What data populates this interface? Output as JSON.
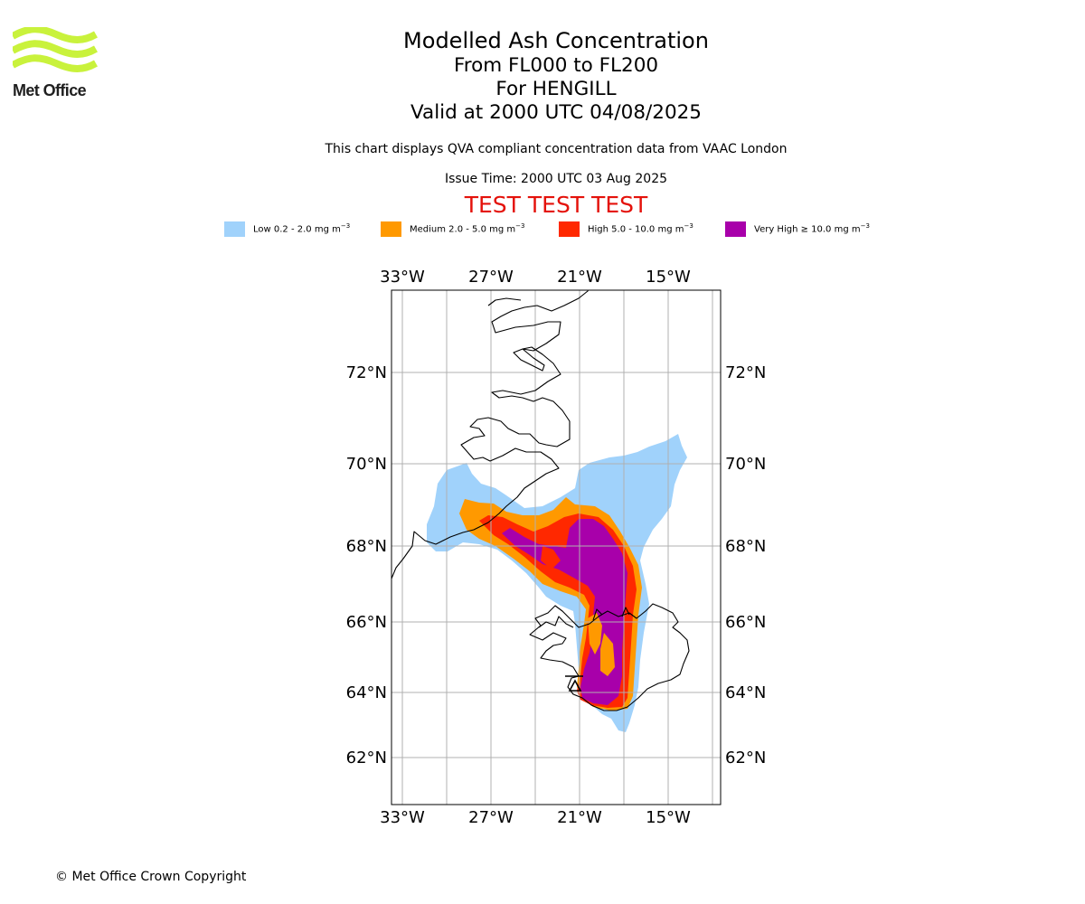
{
  "logo": {
    "name": "Met Office",
    "brand_color": "#c9f23c"
  },
  "title": {
    "line1": "Modelled Ash Concentration",
    "line2": "From FL000 to FL200",
    "line3": "For HENGILL",
    "line4": "Valid at 2000 UTC 04/08/2025"
  },
  "description": "This chart displays QVA compliant concentration data from VAAC London",
  "issue_time": "Issue Time: 2000 UTC 03 Aug 2025",
  "test_banner": "TEST TEST TEST",
  "legend": [
    {
      "label": "Low 0.2 - 2.0 mg m",
      "unit_exp": "−3",
      "color": "#a0d2fb"
    },
    {
      "label": "Medium 2.0 - 5.0 mg m",
      "unit_exp": "−3",
      "color": "#ff9900"
    },
    {
      "label": "High 5.0 - 10.0 mg m",
      "unit_exp": "−3",
      "color": "#ff2800"
    },
    {
      "label": "Very High  ≥  10.0 mg m",
      "unit_exp": "−3",
      "color": "#a800aa"
    }
  ],
  "map": {
    "lon_labels": [
      "33°W",
      "27°W",
      "21°W",
      "15°W"
    ],
    "lat_labels": [
      "72°N",
      "70°N",
      "68°N",
      "66°N",
      "64°N",
      "62°N"
    ],
    "grid": true,
    "volcano_symbol": "triangle"
  },
  "copyright": "© Met Office Crown Copyright"
}
